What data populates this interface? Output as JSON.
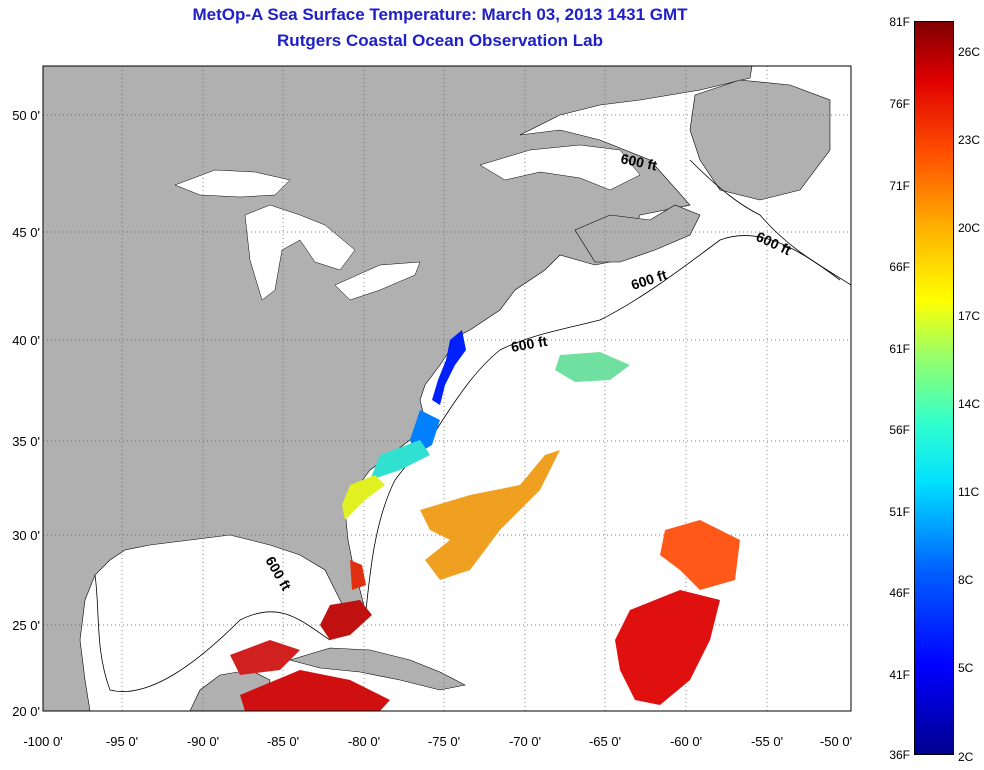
{
  "header": {
    "title": "MetOp-A Sea Surface Temperature:  March 03, 2013 1431 GMT",
    "subtitle": "Rutgers Coastal Ocean Observation Lab"
  },
  "axes": {
    "y_labels": [
      "50 0'",
      "45 0'",
      "40 0'",
      "35 0'",
      "30 0'",
      "25 0'",
      "20 0'"
    ],
    "x_labels": [
      "-100 0'",
      "-95 0'",
      "-90 0'",
      "-85 0'",
      "-80 0'",
      "-75 0'",
      "-70 0'",
      "-65 0'",
      "-60 0'",
      "-55 0'",
      "-50 0'"
    ],
    "lon_range": [
      -100,
      -50
    ],
    "lat_range": [
      20,
      52
    ]
  },
  "depth_contour_label": "600 ft",
  "colorbar": {
    "fahrenheit_labels": [
      "81F",
      "76F",
      "71F",
      "66F",
      "61F",
      "56F",
      "51F",
      "46F",
      "41F",
      "36F"
    ],
    "celsius_labels": [
      "26C",
      "23C",
      "20C",
      "17C",
      "14C",
      "11C",
      "8C",
      "5C",
      "2C"
    ],
    "colors": [
      "#00008f",
      "#0000ff",
      "#00e0ff",
      "#a0ff60",
      "#ffff00",
      "#ffb000",
      "#ff5000",
      "#e00000",
      "#800000"
    ]
  },
  "colors": {
    "land": "#b0b0b0",
    "ocean": "#ffffff",
    "title": "#1f20c8"
  }
}
